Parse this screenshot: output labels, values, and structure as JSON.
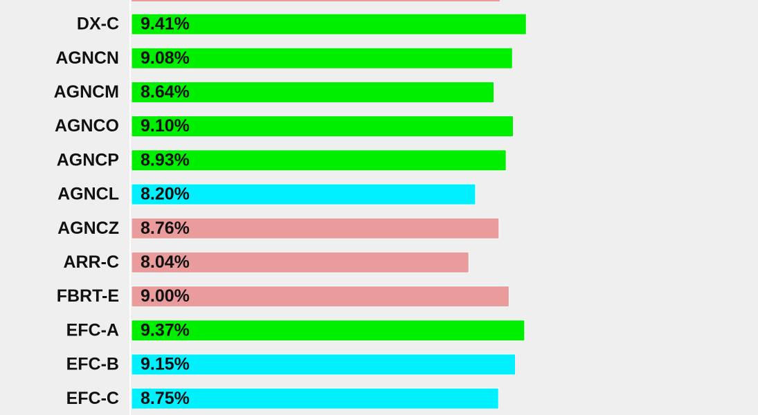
{
  "chart_data": {
    "type": "bar",
    "orientation": "horizontal",
    "categories": [
      "DX-C",
      "AGNCN",
      "AGNCM",
      "AGNCO",
      "AGNCP",
      "AGNCL",
      "AGNCZ",
      "ARR-C",
      "FBRT-E",
      "EFC-A",
      "EFC-B",
      "EFC-C"
    ],
    "values": [
      9.41,
      9.08,
      8.64,
      9.1,
      8.93,
      8.2,
      8.76,
      8.04,
      9.0,
      9.37,
      9.15,
      8.75
    ],
    "value_labels": [
      "9.41%",
      "9.08%",
      "8.64%",
      "9.10%",
      "8.93%",
      "8.20%",
      "8.76%",
      "8.04%",
      "9.00%",
      "9.37%",
      "9.15%",
      "8.75%"
    ],
    "colors": [
      "#00ee00",
      "#00ee00",
      "#00ee00",
      "#00ee00",
      "#00ee00",
      "#00f0ff",
      "#ea9b9b",
      "#ea9b9b",
      "#ea9b9b",
      "#00ee00",
      "#00f0ff",
      "#00f0ff"
    ]
  }
}
